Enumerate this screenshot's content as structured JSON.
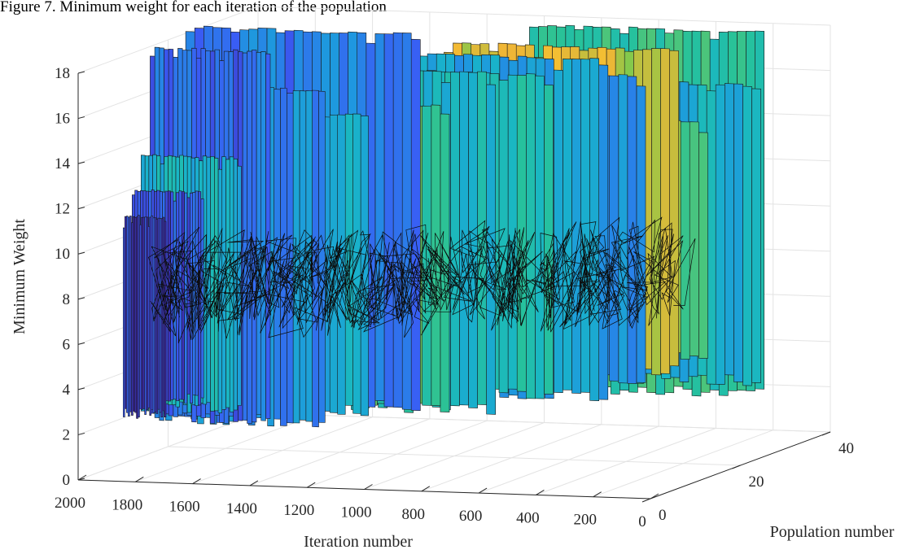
{
  "caption": "Figure 7. Minimum weight for each iteration of the population",
  "chart_data": {
    "type": "surface-3d",
    "title": "",
    "xlabel": "Iteration number",
    "ylabel": "Population number",
    "zlabel": "Minimum Weight",
    "xlim": [
      0,
      2000
    ],
    "ylim": [
      0,
      40
    ],
    "zlim": [
      0,
      18
    ],
    "x_ticks": [
      "0",
      "200",
      "400",
      "600",
      "800",
      "1000",
      "1200",
      "1400",
      "1600",
      "1800",
      "2000"
    ],
    "y_ticks": [
      "0",
      "20",
      "40"
    ],
    "z_ticks": [
      "0",
      "2",
      "4",
      "6",
      "8",
      "10",
      "12",
      "14",
      "16",
      "18"
    ],
    "grid": true,
    "colormap": [
      "#3d26a8",
      "#3a5cf5",
      "#1f96e0",
      "#18b5c8",
      "#27c29a",
      "#86c94a",
      "#f2b635",
      "#f9e02a"
    ],
    "slices": [
      {
        "population": 38,
        "iteration": 200,
        "min_weight": 1.5,
        "max_weight": 17.8,
        "level": 0.55
      },
      {
        "population": 36,
        "iteration": 180,
        "min_weight": 2.2,
        "max_weight": 15.6,
        "level": 0.4
      },
      {
        "population": 35,
        "iteration": 350,
        "min_weight": 3.2,
        "max_weight": 14.0,
        "level": 0.65
      },
      {
        "population": 33,
        "iteration": 420,
        "min_weight": 2.8,
        "max_weight": 17.3,
        "level": 0.8
      },
      {
        "population": 32,
        "iteration": 520,
        "min_weight": 2.5,
        "max_weight": 16.2,
        "level": 0.3
      },
      {
        "population": 30,
        "iteration": 620,
        "min_weight": 1.8,
        "max_weight": 17.0,
        "level": 0.35
      },
      {
        "population": 28,
        "iteration": 780,
        "min_weight": 2.0,
        "max_weight": 16.4,
        "level": 0.5
      },
      {
        "population": 26,
        "iteration": 950,
        "min_weight": 1.4,
        "max_weight": 16.6,
        "level": 0.45
      },
      {
        "population": 24,
        "iteration": 1080,
        "min_weight": 1.5,
        "max_weight": 15.2,
        "level": 0.62
      },
      {
        "population": 22,
        "iteration": 1150,
        "min_weight": 1.8,
        "max_weight": 18.5,
        "level": 0.22
      },
      {
        "population": 20,
        "iteration": 1300,
        "min_weight": 1.6,
        "max_weight": 15.0,
        "level": 0.38
      },
      {
        "population": 18,
        "iteration": 1420,
        "min_weight": 1.2,
        "max_weight": 16.2,
        "level": 0.28
      },
      {
        "population": 16,
        "iteration": 1580,
        "min_weight": 1.4,
        "max_weight": 18.0,
        "level": 0.18
      },
      {
        "population": 14,
        "iteration": 1650,
        "min_weight": 2.0,
        "max_weight": 13.4,
        "level": 0.42
      },
      {
        "population": 12,
        "iteration": 1750,
        "min_weight": 2.5,
        "max_weight": 12.0,
        "level": 0.12
      },
      {
        "population": 10,
        "iteration": 1850,
        "min_weight": 2.0,
        "max_weight": 11.0,
        "level": 0.08
      }
    ],
    "trace_range": [
      4,
      11
    ]
  }
}
